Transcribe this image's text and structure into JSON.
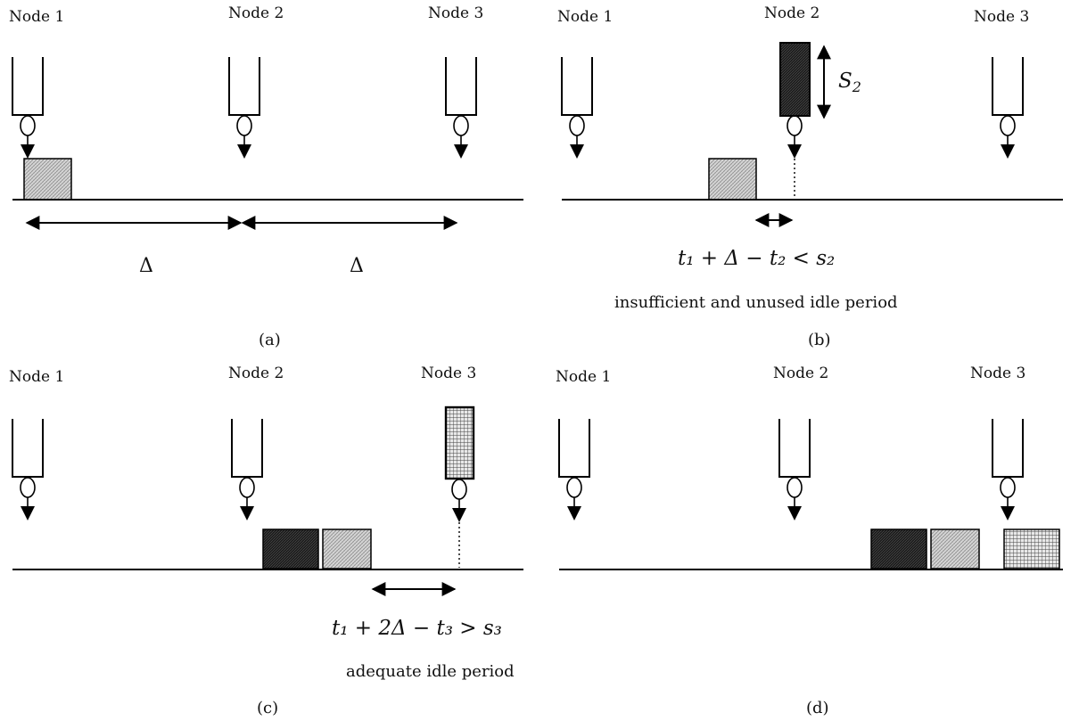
{
  "node_labels": [
    "Node 1",
    "Node 2",
    "Node 3"
  ],
  "panels": {
    "a": {
      "caption": "(a)",
      "delta_left": "Δ",
      "delta_right": "Δ"
    },
    "b": {
      "caption": "(b)",
      "size_label": "S",
      "size_sub": "2",
      "equation": "t₁ + Δ − t₂ < s₂",
      "note": "insufficient and unused idle period"
    },
    "c": {
      "caption": "(c)",
      "equation": "t₁ + 2Δ − t₃ > s₃",
      "note": "adequate idle period"
    },
    "d": {
      "caption": "(d)"
    }
  },
  "colors": {
    "dark_packet": "#1e1e1e",
    "light_packet": "#c8c8c8",
    "grid_packet": "#9a9a9a"
  }
}
